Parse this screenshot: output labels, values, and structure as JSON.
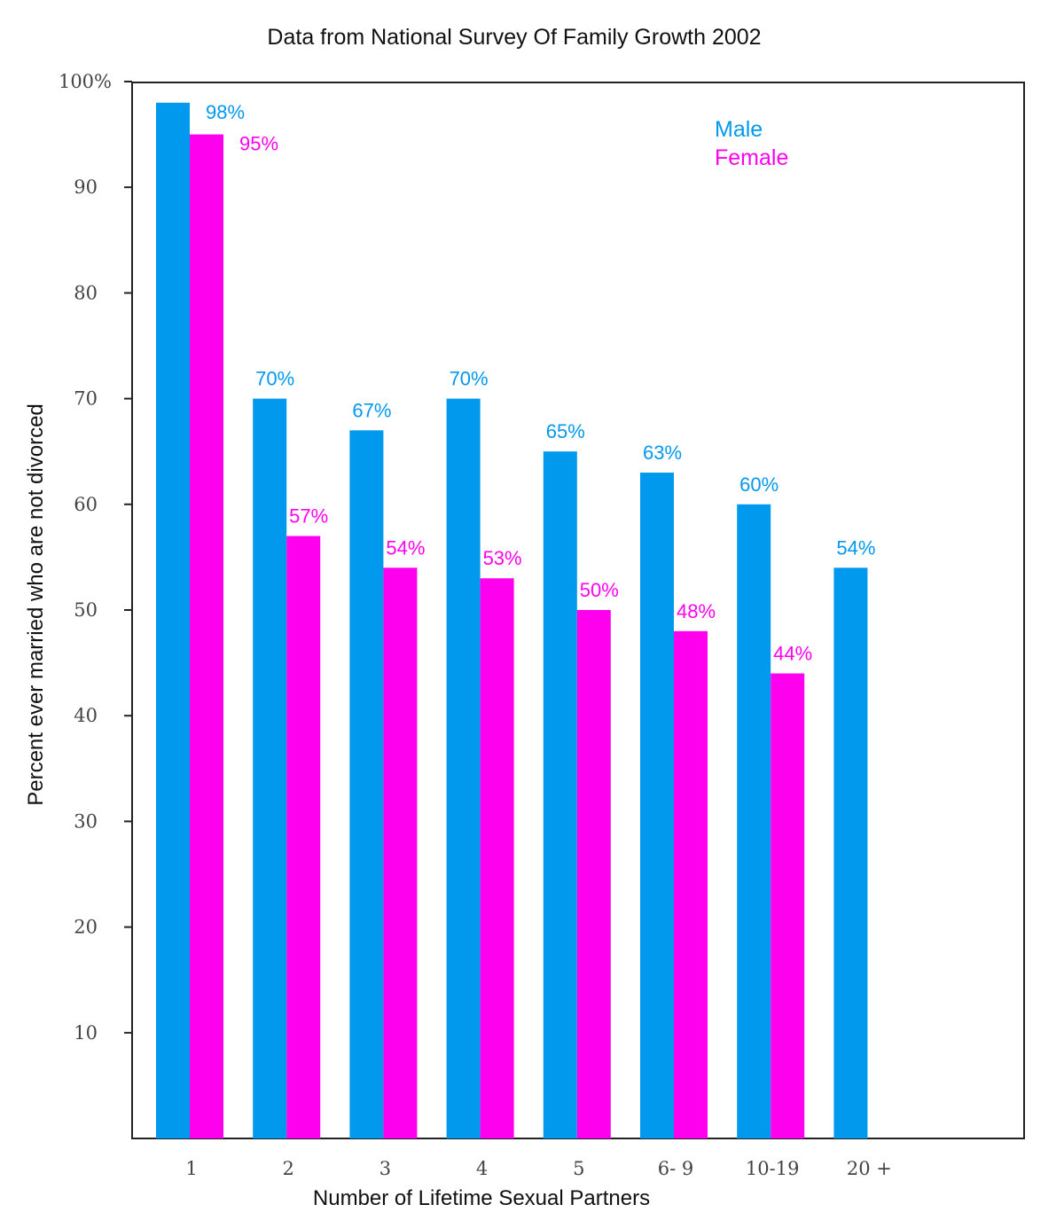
{
  "chart_data": {
    "type": "bar",
    "title": "Data from National Survey Of Family Growth 2002",
    "xlabel": "Number of Lifetime Sexual Partners",
    "ylabel": "Percent ever married who are not divorced",
    "categories": [
      "1",
      "2",
      "3",
      "4",
      "5",
      "6- 9",
      "10-19",
      "20 +"
    ],
    "ylim": [
      0,
      100
    ],
    "yticks": [
      10,
      20,
      30,
      40,
      50,
      60,
      70,
      80,
      90,
      100
    ],
    "ytick_labels": [
      "10",
      "20",
      "30",
      "40",
      "50",
      "60",
      "70",
      "80",
      "90",
      "100%"
    ],
    "grid": false,
    "legend_position": "top-right",
    "series": [
      {
        "name": "Male",
        "color": "#0099ee",
        "values": [
          98,
          70,
          67,
          70,
          65,
          63,
          60,
          54
        ],
        "labels": [
          "98%",
          "70%",
          "67%",
          "70%",
          "65%",
          "63%",
          "60%",
          "54%"
        ]
      },
      {
        "name": "Female",
        "color": "#ff00ee",
        "values": [
          95,
          57,
          54,
          53,
          50,
          48,
          44,
          null
        ],
        "labels": [
          "95%",
          "57%",
          "54%",
          "53%",
          "50%",
          "48%",
          "44%",
          null
        ]
      }
    ]
  }
}
